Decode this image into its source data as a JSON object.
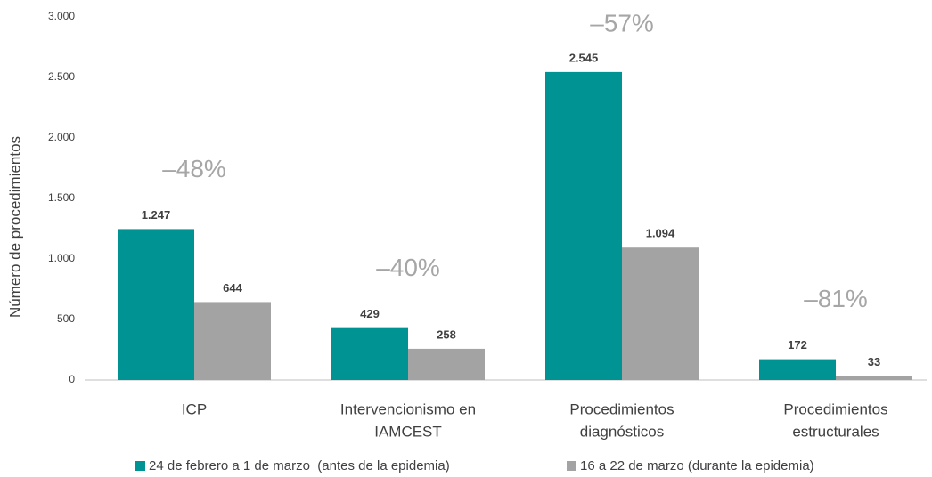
{
  "chart_data": {
    "type": "bar",
    "y_label": "Número de procedimientos",
    "categories": [
      [
        "ICP"
      ],
      [
        "Intervencionismo en",
        "IAMCEST"
      ],
      [
        "Procedimientos",
        "diagnósticos"
      ],
      [
        "Procedimientos",
        "estructurales"
      ]
    ],
    "annotations": [
      "–48%",
      "–40%",
      "–57%",
      "–81%"
    ],
    "series": [
      {
        "name": "24 de febrero a 1 de marzo  (antes de la epidemia)",
        "color": "#009394",
        "values": [
          1247,
          429,
          2545,
          172
        ],
        "value_labels": [
          "1.247",
          "429",
          "2.545",
          "172"
        ]
      },
      {
        "name": "16 a 22 de marzo (durante la epidemia)",
        "color": "#a3a3a3",
        "values": [
          644,
          258,
          1094,
          33
        ],
        "value_labels": [
          "644",
          "258",
          "1.094",
          "33"
        ]
      }
    ],
    "ylim": [
      0,
      3000
    ],
    "yticks": [
      0,
      500,
      {
        "value": 1000,
        "label": "1.000"
      },
      {
        "value": 1500,
        "label": "1.500"
      },
      {
        "value": 2000,
        "label": "2.000"
      },
      {
        "value": 2500,
        "label": "2.500"
      },
      {
        "value": 3000,
        "label": "3.000"
      }
    ],
    "grid": false
  }
}
